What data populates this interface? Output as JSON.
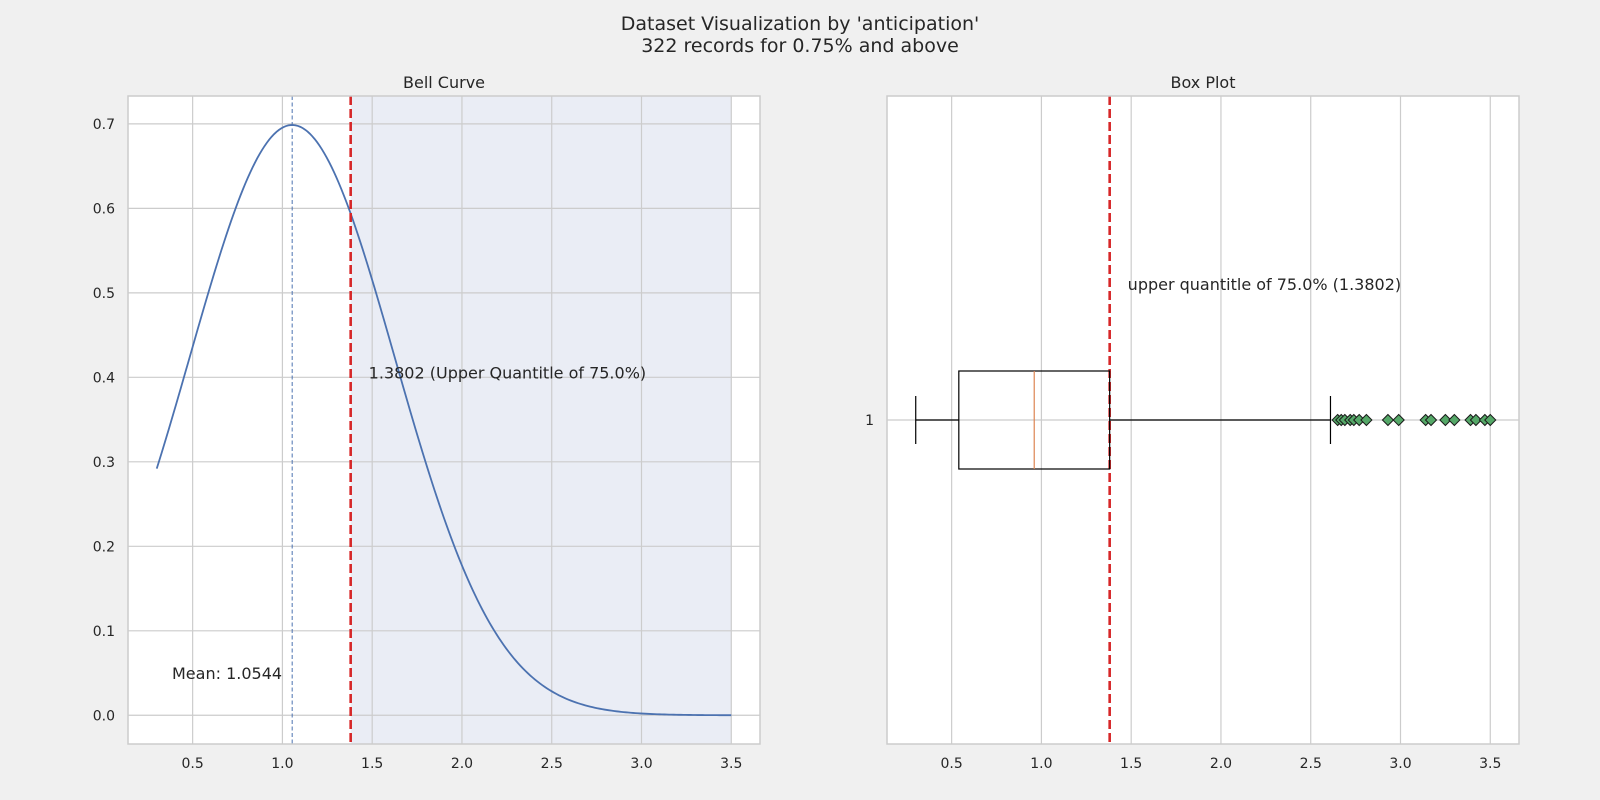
{
  "figure": {
    "title_line1": "Dataset Visualization by 'anticipation'",
    "title_line2": "322 records for 0.75% and above"
  },
  "colors": {
    "figure_bg": "#f0f0f0",
    "axes_bg": "#ffffff",
    "grid": "#cccccc",
    "curve": "#4c72b0",
    "threshold_line": "#d62728",
    "shaded_region": "#eaedf5",
    "median": "#dd8452",
    "outlier_fill": "#55a868",
    "box_edge": "#000000"
  },
  "chart_data": [
    {
      "type": "line",
      "title": "Bell Curve",
      "xlabel": "",
      "ylabel": "",
      "xlim": [
        0.14,
        3.66
      ],
      "ylim": [
        -0.034,
        0.733
      ],
      "xticks": [
        0.5,
        1.0,
        1.5,
        2.0,
        2.5,
        3.0,
        3.5
      ],
      "xtick_labels": [
        "0.5",
        "1.0",
        "1.5",
        "2.0",
        "2.5",
        "3.0",
        "3.5"
      ],
      "yticks": [
        0.0,
        0.1,
        0.2,
        0.3,
        0.4,
        0.5,
        0.6,
        0.7
      ],
      "ytick_labels": [
        "0.0",
        "0.1",
        "0.2",
        "0.3",
        "0.4",
        "0.5",
        "0.6",
        "0.7"
      ],
      "grid": true,
      "series": [
        {
          "kind": "normal_pdf",
          "mean": 1.0544,
          "std": 0.571,
          "x_range": [
            0.3,
            3.5
          ]
        }
      ],
      "mean_line": {
        "x": 1.0544,
        "style": "dashed"
      },
      "threshold_line": {
        "x": 1.3802,
        "style": "dashed"
      },
      "shaded_range": [
        1.3802,
        3.5
      ],
      "annotations": {
        "threshold_label": "1.3802 (Upper Quantitle of 75.0%)",
        "mean_label": "Mean: 1.0544"
      }
    },
    {
      "type": "box",
      "title": "Box Plot",
      "orientation": "horizontal",
      "xlim": [
        0.14,
        3.66
      ],
      "xticks": [
        0.5,
        1.0,
        1.5,
        2.0,
        2.5,
        3.0,
        3.5
      ],
      "xtick_labels": [
        "0.5",
        "1.0",
        "1.5",
        "2.0",
        "2.5",
        "3.0",
        "3.5"
      ],
      "ytick_labels": [
        "1"
      ],
      "grid": true,
      "box": {
        "whisker_low": 0.3,
        "q1": 0.54,
        "median": 0.96,
        "q3": 1.3802,
        "whisker_high": 2.61
      },
      "outliers": [
        2.65,
        2.67,
        2.69,
        2.72,
        2.74,
        2.77,
        2.81,
        2.93,
        2.99,
        3.14,
        3.17,
        3.25,
        3.3,
        3.39,
        3.42,
        3.47,
        3.5
      ],
      "threshold_line": {
        "x": 1.3802,
        "style": "dashed"
      },
      "annotations": {
        "threshold_label": "upper quantitle of 75.0% (1.3802)"
      }
    }
  ]
}
